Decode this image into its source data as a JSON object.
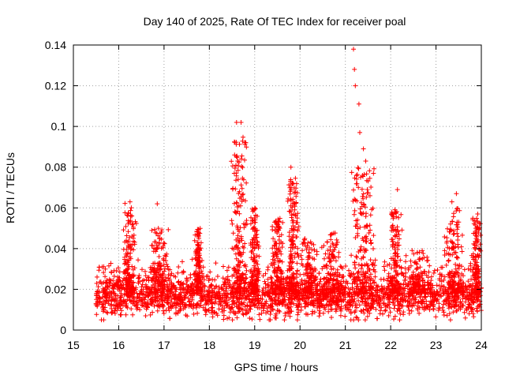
{
  "chart_data": {
    "type": "scatter",
    "title": "Day 140 of 2025, Rate Of TEC Index for receiver poal",
    "xlabel": "GPS time / hours",
    "ylabel": "ROTI / TECUs",
    "xlim": [
      15,
      24
    ],
    "ylim": [
      0,
      0.14
    ],
    "xticks": [
      "15",
      "16",
      "17",
      "18",
      "19",
      "20",
      "21",
      "22",
      "23",
      "24"
    ],
    "yticks": [
      "0",
      "0.02",
      "0.04",
      "0.06",
      "0.08",
      "0.1",
      "0.12",
      "0.14"
    ],
    "grid": true,
    "marker": "+",
    "color": "#ff0000",
    "x_range_of_data": [
      15.5,
      24
    ],
    "notable_points": [
      {
        "x": 16.25,
        "y": 0.063
      },
      {
        "x": 16.85,
        "y": 0.062
      },
      {
        "x": 18.6,
        "y": 0.102
      },
      {
        "x": 18.7,
        "y": 0.102
      },
      {
        "x": 18.55,
        "y": 0.077
      },
      {
        "x": 19.8,
        "y": 0.08
      },
      {
        "x": 19.85,
        "y": 0.072
      },
      {
        "x": 21.18,
        "y": 0.138
      },
      {
        "x": 21.2,
        "y": 0.128
      },
      {
        "x": 21.22,
        "y": 0.12
      },
      {
        "x": 21.3,
        "y": 0.111
      },
      {
        "x": 21.32,
        "y": 0.097
      },
      {
        "x": 21.4,
        "y": 0.089
      },
      {
        "x": 21.45,
        "y": 0.083
      },
      {
        "x": 21.62,
        "y": 0.077
      },
      {
        "x": 22.15,
        "y": 0.069
      },
      {
        "x": 23.45,
        "y": 0.067
      },
      {
        "x": 23.35,
        "y": 0.063
      },
      {
        "x": 23.92,
        "y": 0.057
      }
    ],
    "bursts": [
      {
        "center": 16.25,
        "peak": 0.063,
        "width": 0.15
      },
      {
        "center": 16.9,
        "peak": 0.05,
        "width": 0.25
      },
      {
        "center": 17.75,
        "peak": 0.05,
        "width": 0.08
      },
      {
        "center": 18.65,
        "peak": 0.095,
        "width": 0.2
      },
      {
        "center": 19.0,
        "peak": 0.06,
        "width": 0.1
      },
      {
        "center": 19.5,
        "peak": 0.055,
        "width": 0.15
      },
      {
        "center": 19.85,
        "peak": 0.075,
        "width": 0.15
      },
      {
        "center": 20.2,
        "peak": 0.045,
        "width": 0.2
      },
      {
        "center": 20.7,
        "peak": 0.048,
        "width": 0.3
      },
      {
        "center": 21.4,
        "peak": 0.08,
        "width": 0.3
      },
      {
        "center": 22.1,
        "peak": 0.06,
        "width": 0.15
      },
      {
        "center": 22.6,
        "peak": 0.04,
        "width": 0.3
      },
      {
        "center": 23.4,
        "peak": 0.06,
        "width": 0.25
      },
      {
        "center": 23.9,
        "peak": 0.055,
        "width": 0.12
      }
    ],
    "baseline": {
      "typical": 0.016,
      "min": 0.005,
      "max": 0.03
    }
  }
}
